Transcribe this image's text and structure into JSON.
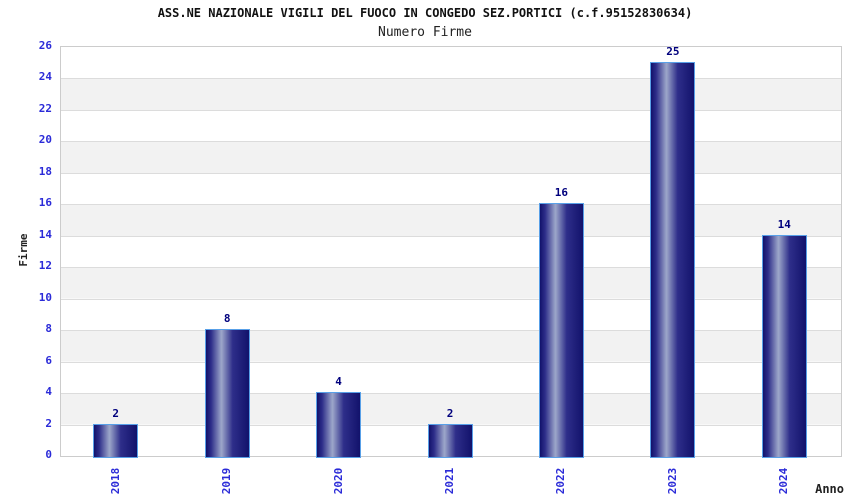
{
  "chart_data": {
    "type": "bar",
    "title": "ASS.NE NAZIONALE VIGILI DEL FUOCO IN CONGEDO SEZ.PORTICI (c.f.95152830634)",
    "subtitle": "Numero Firme",
    "xlabel": "Anno",
    "ylabel": "Firme",
    "categories": [
      "2018",
      "2019",
      "2020",
      "2021",
      "2022",
      "2023",
      "2024"
    ],
    "values": [
      2,
      8,
      4,
      2,
      16,
      25,
      14
    ],
    "ylim": [
      0,
      26
    ],
    "ytick_step": 2,
    "grid": "horizontal-bands",
    "legend_position": "none"
  },
  "colors": {
    "axis-blue": "#2b2bd8",
    "value-navy": "#00007d",
    "bar-dark": "#12126b",
    "bar-mid": "#2e2e8a",
    "bar-highlight": "#9da7ca",
    "bar-outline": "#58a0e8",
    "band-gray": "#f2f2f2",
    "plot-border": "#cccccc",
    "gridline": "#dcdcdc",
    "title-color": "#111111",
    "text-dark": "#222222"
  }
}
